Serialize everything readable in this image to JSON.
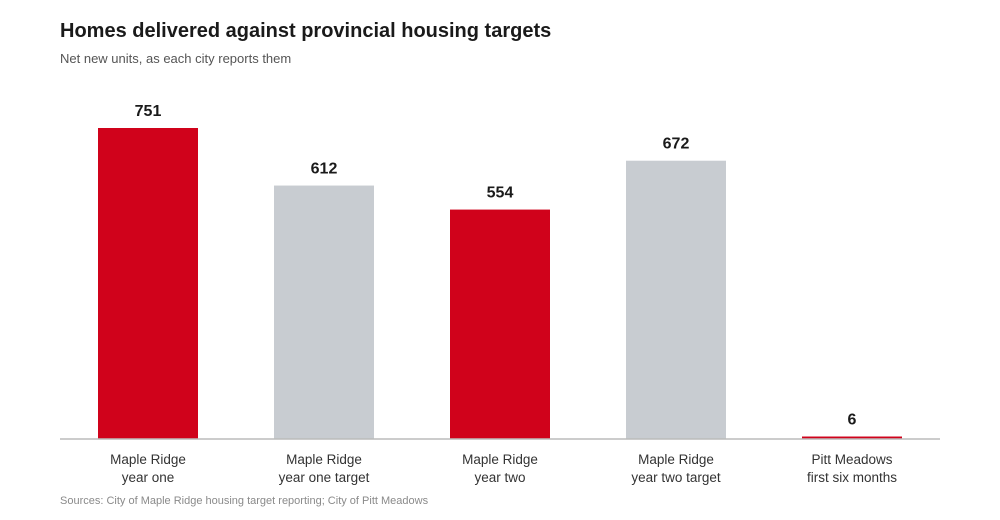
{
  "chart_data": {
    "type": "bar",
    "title": "Homes delivered against provincial housing targets",
    "subtitle": "Net new units, as each city reports them",
    "source": "Sources: City of Maple Ridge housing target reporting; City of Pitt Meadows",
    "categories": [
      [
        "Maple Ridge",
        "year one"
      ],
      [
        "Maple Ridge",
        "year one target"
      ],
      [
        "Maple Ridge",
        "year two"
      ],
      [
        "Maple Ridge",
        "year two target"
      ],
      [
        "Pitt Meadows",
        "first six months"
      ]
    ],
    "values": [
      751,
      612,
      554,
      672,
      6
    ],
    "value_labels": [
      "751",
      "612",
      "554",
      "672",
      "6"
    ],
    "bar_kind": [
      "actual",
      "target",
      "actual",
      "target",
      "actual"
    ],
    "colors": {
      "actual": "#d0021b",
      "target": "#c8ccd1",
      "baseline": "#bbbbbb"
    },
    "ylim": [
      0,
      751
    ],
    "grid": false,
    "legend": "none",
    "xlabel": "",
    "ylabel": ""
  }
}
